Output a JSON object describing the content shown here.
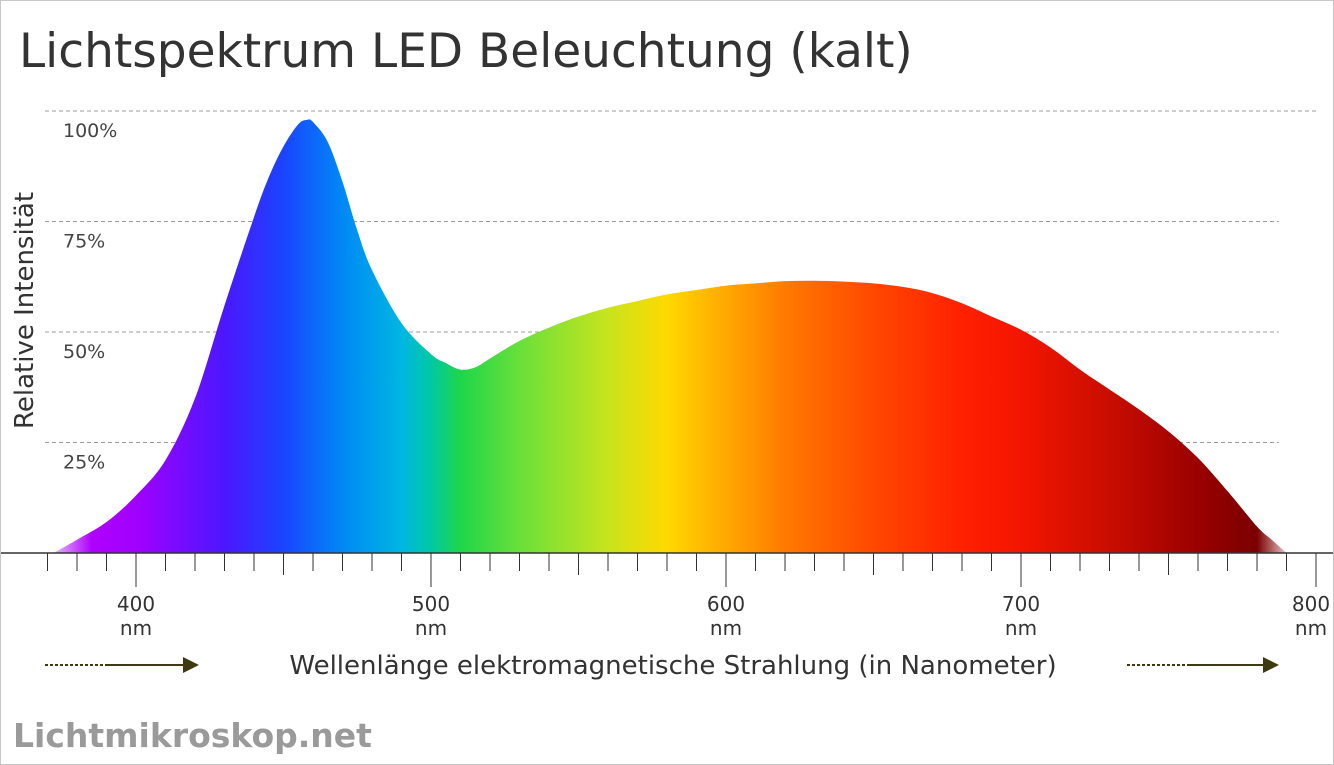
{
  "chart_data": {
    "type": "area",
    "title": "Lichtspektrum LED Beleuchtung (kalt)",
    "xlabel": "Wellenlänge elektromagnetische Strahlung (in Nanometer)",
    "ylabel": "Relative Intensität",
    "xlim": [
      370,
      790
    ],
    "ylim": [
      0,
      100
    ],
    "grid": true,
    "legend": "none",
    "x_ticks": [
      {
        "value": 400,
        "label": "400",
        "unit": "nm"
      },
      {
        "value": 500,
        "label": "500",
        "unit": "nm"
      },
      {
        "value": 600,
        "label": "600",
        "unit": "nm"
      },
      {
        "value": 700,
        "label": "700",
        "unit": "nm"
      },
      {
        "value": 800,
        "label": "800",
        "unit": "nm"
      }
    ],
    "y_ticks": [
      {
        "value": 25,
        "label": "25%"
      },
      {
        "value": 50,
        "label": "50%"
      },
      {
        "value": 75,
        "label": "75%"
      },
      {
        "value": 100,
        "label": "100%"
      }
    ],
    "series": [
      {
        "x": [
          372,
          380,
          390,
          400,
          410,
          420,
          430,
          440,
          445,
          450,
          455,
          458,
          460,
          465,
          470,
          475,
          480,
          490,
          500,
          505,
          510,
          515,
          520,
          530,
          540,
          550,
          560,
          570,
          580,
          590,
          600,
          610,
          620,
          630,
          640,
          650,
          660,
          670,
          680,
          690,
          700,
          710,
          720,
          730,
          740,
          750,
          760,
          770,
          780,
          785,
          790
        ],
        "y": [
          0,
          3,
          7,
          13,
          21,
          35,
          56,
          76,
          85,
          92,
          97,
          98,
          97.5,
          93,
          84,
          73,
          64,
          52,
          45,
          43,
          41.5,
          42,
          44,
          48,
          51,
          53.5,
          55.5,
          57,
          58.5,
          59.5,
          60.5,
          61,
          61.5,
          61.6,
          61.4,
          61,
          60.2,
          58.8,
          56.5,
          53.5,
          50.5,
          46.5,
          41.5,
          37,
          32.5,
          27.5,
          21.5,
          14,
          6,
          3,
          0
        ]
      }
    ],
    "spectrum_colors": [
      {
        "x": 370,
        "color": "#f0d6ff"
      },
      {
        "x": 385,
        "color": "#b000ff"
      },
      {
        "x": 400,
        "color": "#a100ff"
      },
      {
        "x": 430,
        "color": "#4b17ff"
      },
      {
        "x": 450,
        "color": "#1a44ff"
      },
      {
        "x": 470,
        "color": "#0089f5"
      },
      {
        "x": 490,
        "color": "#00b6e2"
      },
      {
        "x": 500,
        "color": "#00c9a3"
      },
      {
        "x": 510,
        "color": "#1ed64a"
      },
      {
        "x": 530,
        "color": "#69e03a"
      },
      {
        "x": 560,
        "color": "#c7e41e"
      },
      {
        "x": 580,
        "color": "#ffd900"
      },
      {
        "x": 600,
        "color": "#ffa800"
      },
      {
        "x": 620,
        "color": "#ff7a00"
      },
      {
        "x": 650,
        "color": "#ff4800"
      },
      {
        "x": 680,
        "color": "#ff2000"
      },
      {
        "x": 700,
        "color": "#f41500"
      },
      {
        "x": 730,
        "color": "#c90d00"
      },
      {
        "x": 760,
        "color": "#9a0000"
      },
      {
        "x": 780,
        "color": "#7a0000"
      },
      {
        "x": 790,
        "color": "#e8c2c2"
      }
    ],
    "colors": {
      "grid": "#9e9e9e",
      "axis": "#333333",
      "arrow": "#3f3a10",
      "text": "#333333"
    }
  },
  "branding": {
    "site": "Lichtmikroskop.net"
  }
}
